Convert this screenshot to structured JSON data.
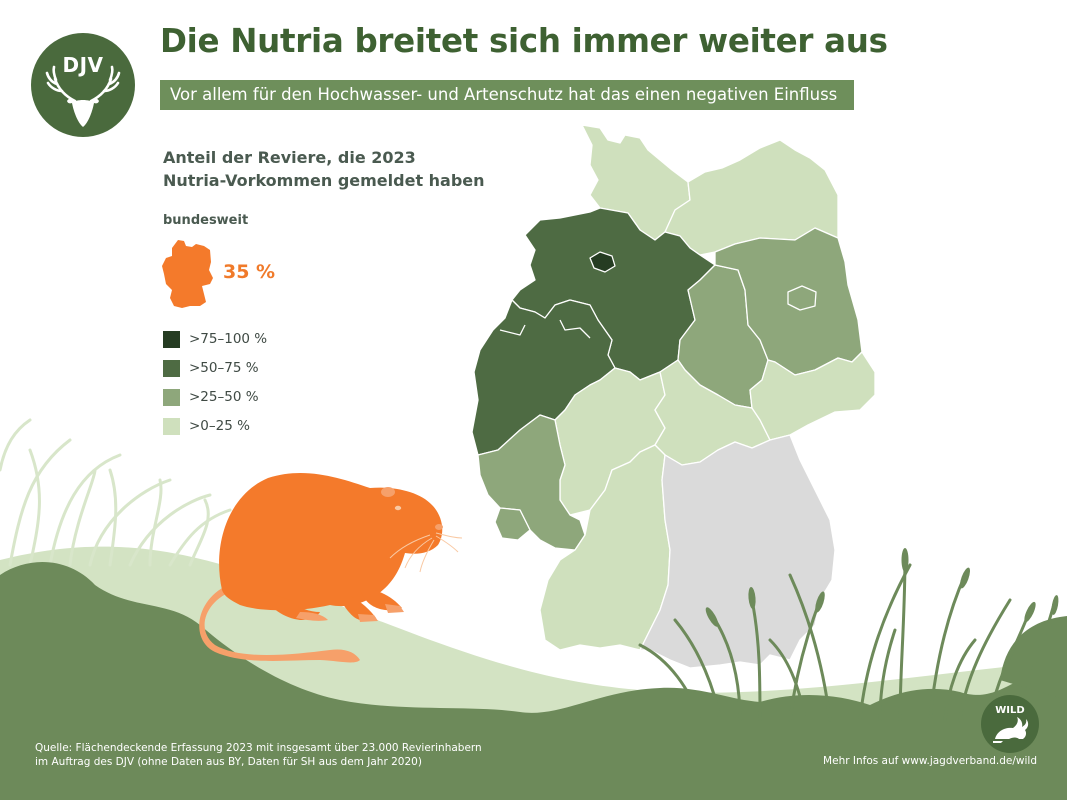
{
  "header": {
    "logo_text": "DJV",
    "title": "Die Nutria breitet sich immer weiter aus",
    "subtitle": "Vor allem für den Hochwasser- und Artenschutz hat das einen negativen Einfluss"
  },
  "legend": {
    "heading_line1": "Anteil der Reviere, die 2023",
    "heading_line2": "Nutria-Vorkommen gemeldet haben",
    "national_label": "bundesweit",
    "national_value": "35 %",
    "national_value_number": 35,
    "classes": [
      {
        "label": ">75–100 %",
        "color": "#253c22"
      },
      {
        "label": ">50–75 %",
        "color": "#4e6b43"
      },
      {
        "label": ">25–50 %",
        "color": "#8ea77b"
      },
      {
        "label": ">0–25 %",
        "color": "#cfe0bd"
      }
    ],
    "no_data_color": "#dadada",
    "national_color": "#f47a2b"
  },
  "map": {
    "subject": "Nutria occurrence share per federal state, Germany 2023",
    "regions": [
      {
        "name": "Schleswig-Holstein",
        "class": ">0–25 %"
      },
      {
        "name": "Hamburg",
        "class": ">0–25 %"
      },
      {
        "name": "Mecklenburg-Vorpommern",
        "class": ">0–25 %"
      },
      {
        "name": "Niedersachsen",
        "class": ">50–75 %"
      },
      {
        "name": "Bremen",
        "class": ">75–100 %"
      },
      {
        "name": "Brandenburg",
        "class": ">25–50 %"
      },
      {
        "name": "Berlin",
        "class": ">25–50 %"
      },
      {
        "name": "Sachsen-Anhalt",
        "class": ">25–50 %"
      },
      {
        "name": "Nordrhein-Westfalen",
        "class": ">50–75 %"
      },
      {
        "name": "Hessen",
        "class": ">0–25 %"
      },
      {
        "name": "Thüringen",
        "class": ">0–25 %"
      },
      {
        "name": "Sachsen",
        "class": ">0–25 %"
      },
      {
        "name": "Rheinland-Pfalz",
        "class": ">25–50 %"
      },
      {
        "name": "Saarland",
        "class": ">25–50 %"
      },
      {
        "name": "Baden-Württemberg",
        "class": ">0–25 %"
      },
      {
        "name": "Bayern",
        "class": "no data"
      }
    ]
  },
  "footer": {
    "source_line1": "Quelle: Flächendeckende Erfassung 2023 mit insgesamt über 23.000 Revierinhabern",
    "source_line2": "im Auftrag des DJV (ohne Daten aus BY, Daten für SH aus dem Jahr 2020)",
    "more_info": "Mehr Infos auf www.jagdverband.de/wild",
    "wild_badge": "WILD"
  },
  "colors": {
    "brand_green": "#4a6a3d",
    "title_green": "#3e6132",
    "nutria_orange": "#f47a2b",
    "meadow": "#d3e3c3",
    "foreground": "#6d8a5a"
  },
  "icons": [
    "djv-deer-logo-icon",
    "germany-silhouette-icon",
    "nutria-illustration",
    "wild-hare-logo-icon"
  ]
}
